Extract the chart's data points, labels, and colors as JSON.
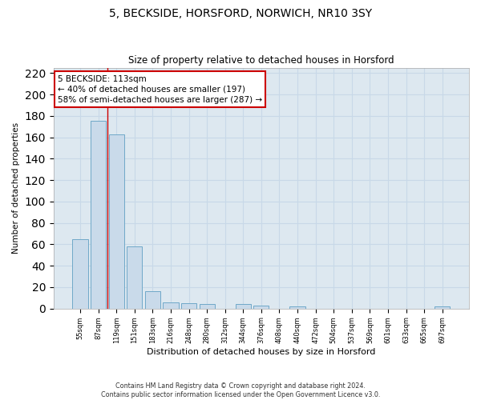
{
  "title": "5, BECKSIDE, HORSFORD, NORWICH, NR10 3SY",
  "subtitle": "Size of property relative to detached houses in Horsford",
  "xlabel": "Distribution of detached houses by size in Horsford",
  "ylabel": "Number of detached properties",
  "categories": [
    "55sqm",
    "87sqm",
    "119sqm",
    "151sqm",
    "183sqm",
    "216sqm",
    "248sqm",
    "280sqm",
    "312sqm",
    "344sqm",
    "376sqm",
    "408sqm",
    "440sqm",
    "472sqm",
    "504sqm",
    "537sqm",
    "569sqm",
    "601sqm",
    "633sqm",
    "665sqm",
    "697sqm"
  ],
  "values": [
    65,
    175,
    163,
    58,
    16,
    6,
    5,
    4,
    0,
    4,
    3,
    0,
    2,
    0,
    0,
    0,
    0,
    0,
    0,
    0,
    2
  ],
  "bar_color": "#c9daea",
  "bar_edge_color": "#6fa8c8",
  "grid_color": "#c5d5e5",
  "vline_x_index": 1.5,
  "vline_color": "#cc0000",
  "annotation_line1": "5 BECKSIDE: 113sqm",
  "annotation_line2": "← 40% of detached houses are smaller (197)",
  "annotation_line3": "58% of semi-detached houses are larger (287) →",
  "annotation_edge_color": "#cc0000",
  "ylim": [
    0,
    225
  ],
  "yticks": [
    0,
    20,
    40,
    60,
    80,
    100,
    120,
    140,
    160,
    180,
    200,
    220
  ],
  "footnote_line1": "Contains HM Land Registry data © Crown copyright and database right 2024.",
  "footnote_line2": "Contains public sector information licensed under the Open Government Licence v3.0.",
  "bg_color": "#dde8f0"
}
